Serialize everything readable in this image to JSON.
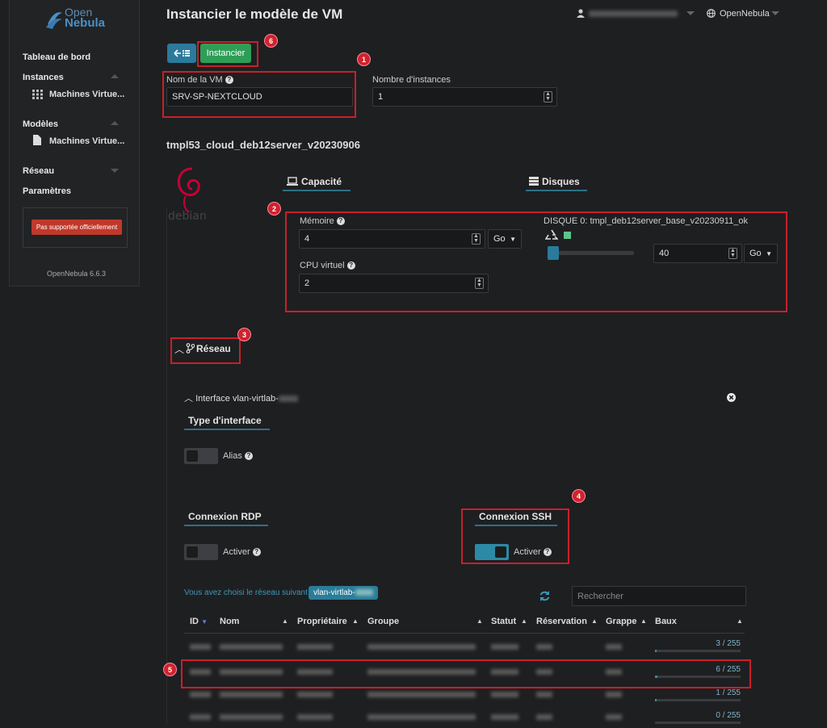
{
  "app": {
    "logo_top": "Open",
    "logo_bottom": "Nebula",
    "version": "OpenNebula 6.6.3"
  },
  "sidebar": {
    "items": [
      {
        "label": "Tableau de bord"
      },
      {
        "label": "Instances",
        "children": [
          {
            "label": "Machines Virtue..."
          }
        ]
      },
      {
        "label": "Modèles",
        "children": [
          {
            "label": "Machines Virtue..."
          }
        ]
      },
      {
        "label": "Réseau"
      },
      {
        "label": "Paramètres"
      }
    ],
    "unsupported_label": "Pas supportée officiellement"
  },
  "header": {
    "title": "Instancier le modèle de VM",
    "zone": "OpenNebula"
  },
  "toolbar": {
    "back_icon": "back-list-icon",
    "instantiate_label": "Instancier"
  },
  "form": {
    "vm_name_label": "Nom de la VM",
    "vm_name_value": "SRV-SP-NEXTCLOUD",
    "instances_label": "Nombre d'instances",
    "instances_value": "1",
    "template_name": "tmpl53_cloud_deb12server_v20230906",
    "logo_text": "debian"
  },
  "capacity": {
    "tab_label": "Capacité",
    "memory_label": "Mémoire",
    "memory_value": "4",
    "memory_unit": "Go",
    "cpu_label": "CPU virtuel",
    "cpu_value": "2"
  },
  "disks": {
    "tab_label": "Disques",
    "disk_label": "DISQUE 0: tmpl_deb12server_base_v20230911_ok",
    "size_value": "40",
    "size_unit": "Go",
    "slider_level": 0.05
  },
  "network": {
    "section_label": "Réseau",
    "interface_label": "Interface",
    "interface_name": "vlan-virtlab-",
    "type_header": "Type d'interface",
    "alias_label": "Alias",
    "rdp_header": "Connexion RDP",
    "rdp_toggle_label": "Activer",
    "ssh_header": "Connexion SSH",
    "ssh_toggle_label": "Activer",
    "chosen_prefix": "Vous avez choisi le réseau suivant :",
    "chosen_network": "vlan-virtlab-",
    "search_placeholder": "Rechercher"
  },
  "table": {
    "columns": [
      "ID",
      "Nom",
      "Propriétaire",
      "Groupe",
      "Statut",
      "Réservation",
      "Grappe",
      "Baux"
    ],
    "rows": [
      {
        "leases": "3 / 255",
        "fill": 0.012
      },
      {
        "leases": "6 / 255",
        "fill": 0.024
      },
      {
        "leases": "1 / 255",
        "fill": 0.004
      },
      {
        "leases": "0 / 255",
        "fill": 0
      }
    ]
  },
  "annotations": [
    "1",
    "2",
    "3",
    "4",
    "5",
    "6"
  ],
  "colors": {
    "accent": "#2b7a9b",
    "success": "#2e9e57",
    "annotation": "#d0232b"
  }
}
